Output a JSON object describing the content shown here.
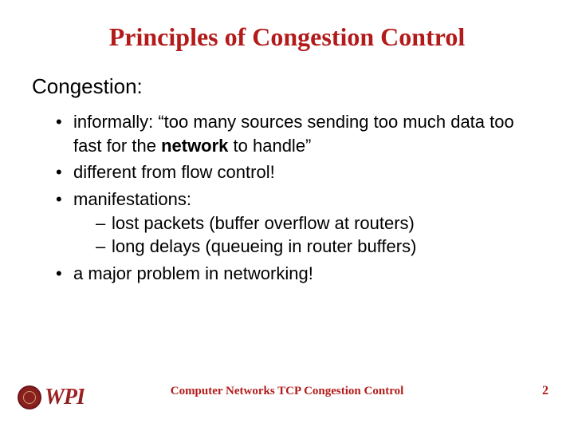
{
  "colors": {
    "title": "#b31b1b",
    "body": "#000000",
    "footer": "#b31b1b",
    "pagenum": "#b31b1b"
  },
  "fontsizes": {
    "title": 32,
    "subhead": 26,
    "body": 22,
    "footer": 15,
    "pagenum": 16
  },
  "title": "Principles of Congestion Control",
  "subhead": "Congestion:",
  "bullets": [
    {
      "pre": "informally: “too many sources sending too much data too fast for the ",
      "bold": "network",
      "post": " to handle”"
    },
    {
      "text": "different from flow control!"
    },
    {
      "text": "manifestations:",
      "sub": [
        "lost packets (buffer overflow at routers)",
        "long delays (queueing in router buffers)"
      ]
    },
    {
      "text": "a major problem in networking!"
    }
  ],
  "footer": {
    "logo_text": "WPI",
    "center": "Computer Networks   TCP Congestion Control",
    "page": "2"
  }
}
